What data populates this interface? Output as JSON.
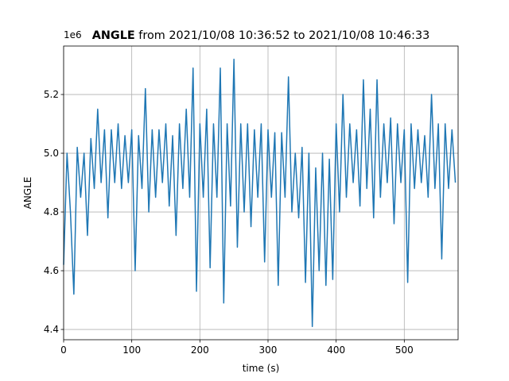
{
  "chart_data": {
    "type": "line",
    "title_bold": "ANGLE",
    "title": " from 2021/10/08 10:36:52 to 2021/10/08 10:46:33",
    "offset_label": "1e6",
    "xlabel": "time (s)",
    "ylabel": "ANGLE",
    "x": [
      0,
      5,
      10,
      15,
      20,
      25,
      30,
      35,
      40,
      45,
      50,
      55,
      60,
      65,
      70,
      75,
      80,
      85,
      90,
      95,
      100,
      105,
      110,
      115,
      120,
      125,
      130,
      135,
      140,
      145,
      150,
      155,
      160,
      165,
      170,
      175,
      180,
      185,
      190,
      195,
      200,
      205,
      210,
      215,
      220,
      225,
      230,
      235,
      240,
      245,
      250,
      255,
      260,
      265,
      270,
      275,
      280,
      285,
      290,
      295,
      300,
      305,
      310,
      315,
      320,
      325,
      330,
      335,
      340,
      345,
      350,
      355,
      360,
      365,
      370,
      375,
      380,
      385,
      390,
      395,
      400,
      405,
      410,
      415,
      420,
      425,
      430,
      435,
      440,
      445,
      450,
      455,
      460,
      465,
      470,
      475,
      480,
      485,
      490,
      495,
      500,
      505,
      510,
      515,
      520,
      525,
      530,
      535,
      540,
      545,
      550,
      555,
      560,
      565,
      570,
      575
    ],
    "values": [
      4.62,
      5.0,
      4.8,
      4.52,
      5.02,
      4.85,
      5.0,
      4.72,
      5.05,
      4.88,
      5.15,
      4.9,
      5.08,
      4.78,
      5.08,
      4.9,
      5.1,
      4.88,
      5.06,
      4.9,
      5.08,
      4.6,
      5.06,
      4.88,
      5.22,
      4.8,
      5.08,
      4.85,
      5.08,
      4.9,
      5.1,
      4.82,
      5.06,
      4.72,
      5.1,
      4.88,
      5.15,
      4.85,
      5.29,
      4.53,
      5.1,
      4.85,
      5.15,
      4.61,
      5.1,
      4.85,
      5.29,
      4.49,
      5.1,
      4.82,
      5.32,
      4.68,
      5.1,
      4.8,
      5.1,
      4.75,
      5.08,
      4.85,
      5.1,
      4.63,
      5.08,
      4.85,
      5.07,
      4.55,
      5.07,
      4.85,
      5.26,
      4.8,
      5.0,
      4.78,
      5.02,
      4.56,
      5.0,
      4.41,
      4.95,
      4.6,
      5.0,
      4.55,
      4.98,
      4.57,
      5.1,
      4.8,
      5.2,
      4.85,
      5.1,
      4.9,
      5.08,
      4.82,
      5.25,
      4.88,
      5.15,
      4.78,
      5.25,
      4.85,
      5.1,
      4.9,
      5.12,
      4.76,
      5.1,
      4.9,
      5.08,
      4.56,
      5.1,
      4.88,
      5.08,
      4.9,
      5.06,
      4.85,
      5.2,
      4.88,
      5.1,
      4.64,
      5.1,
      4.88,
      5.08,
      4.9
    ],
    "color": "#1f77b4",
    "xlim": [
      0,
      579
    ],
    "xticks": [
      0,
      100,
      200,
      300,
      400,
      500
    ],
    "ylim": [
      4.365,
      5.365
    ],
    "yticks": [
      4.4,
      4.6,
      4.8,
      {
        "value": 5,
        "label": "5.0"
      },
      5.2
    ],
    "grid": true
  }
}
